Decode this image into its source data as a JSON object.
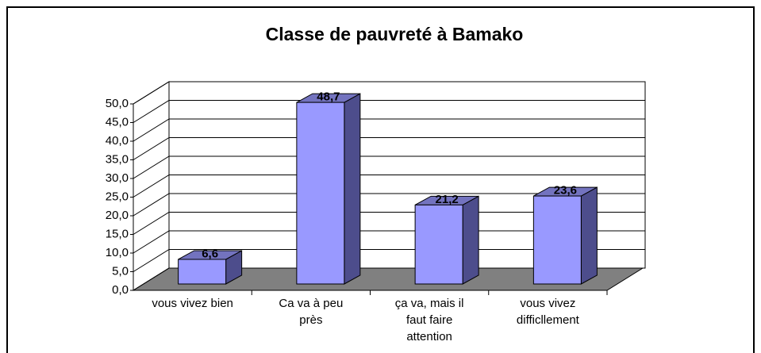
{
  "chart_data": {
    "type": "bar3d",
    "title": "Classe de pauvreté à Bamako",
    "categories": [
      "vous vivez bien",
      "Ca va à peu\nprès",
      "ça va, mais il\nfaut faire\nattention",
      "vous vivez\ndifficllement"
    ],
    "values": [
      6.6,
      48.7,
      21.2,
      23.6
    ],
    "value_labels": [
      "6,6",
      "48,7",
      "21,2",
      "23,6"
    ],
    "color": "#9999ff",
    "ylim": [
      0,
      50
    ],
    "yticks": [
      {
        "value": 0,
        "label": "0,0"
      },
      {
        "value": 5,
        "label": "5,0"
      },
      {
        "value": 10,
        "label": "10,0"
      },
      {
        "value": 15,
        "label": "15,0"
      },
      {
        "value": 20,
        "label": "20,0"
      },
      {
        "value": 25,
        "label": "25,0"
      },
      {
        "value": 30,
        "label": "30,0"
      },
      {
        "value": 35,
        "label": "35,0"
      },
      {
        "value": 40,
        "label": "40,0"
      },
      {
        "value": 45,
        "label": "45,0"
      },
      {
        "value": 50,
        "label": "50,0"
      }
    ],
    "grid": true
  }
}
